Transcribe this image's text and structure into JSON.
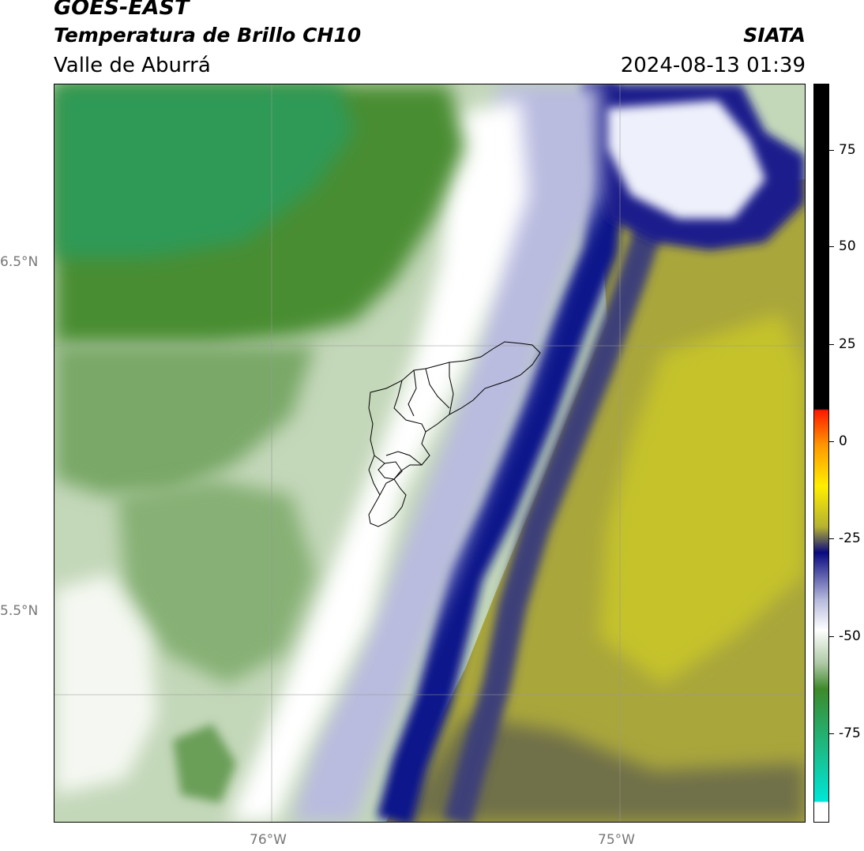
{
  "header": {
    "satellite": "GOES-EAST",
    "product": "Temperatura de Brillo CH10",
    "region": "Valle de Aburrá",
    "organization": "SIATA",
    "timestamp": "2024-08-13 01:39"
  },
  "axes": {
    "lat_labels": [
      "6.5°N",
      "5.5°N"
    ],
    "lon_labels": [
      "76°W",
      "75°W"
    ]
  },
  "colorbar": {
    "ticks": [
      "75",
      "50",
      "25",
      "0",
      "-25",
      "-50",
      "-75"
    ],
    "colors": {
      "black": "#000000",
      "red": "#ff1a00",
      "orange": "#ff9900",
      "yellow": "#ffee00",
      "olive": "#b5b232",
      "navy": "#0a0a80",
      "lavender": "#b8bcdc",
      "white": "#ffffff",
      "light_green": "#aec9a5",
      "green": "#3d8a2a",
      "cyan": "#00e5d5"
    }
  },
  "map_colors": {
    "green_dark": "#2e9a55",
    "green": "#4f8d35",
    "green_mid": "#74a45c",
    "green_light": "#a9c79a",
    "green_pale": "#d6e4cf",
    "white": "#ffffff",
    "lavender": "#c9cbe6",
    "blue_mid": "#7b7fbd",
    "navy": "#0d0f85",
    "slate": "#464870",
    "olive_dark": "#7a7a3e",
    "olive": "#a6a43a",
    "yellow": "#c9c61e"
  }
}
